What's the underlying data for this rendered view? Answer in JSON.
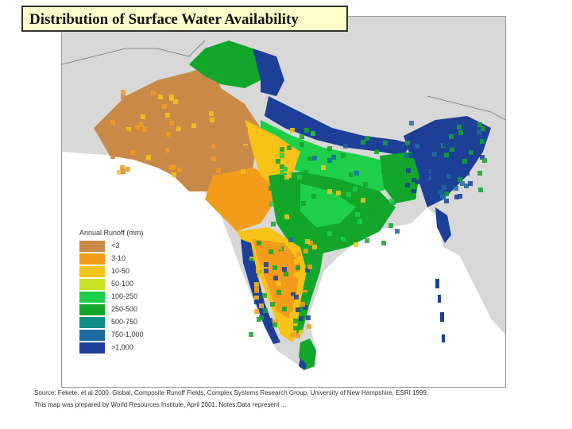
{
  "title": "Distribution of Surface Water Availability",
  "legend": {
    "title": "Annual Runoff (mm)",
    "classes": [
      {
        "label": "<3",
        "color": "#c98a48"
      },
      {
        "label": "3-10",
        "color": "#f39c1c"
      },
      {
        "label": "10-50",
        "color": "#f7c318"
      },
      {
        "label": "50-100",
        "color": "#c6e022"
      },
      {
        "label": "100-250",
        "color": "#1ecf4a"
      },
      {
        "label": "250-500",
        "color": "#12a62a"
      },
      {
        "label": "500-750",
        "color": "#0e8f86"
      },
      {
        "label": "750-1,000",
        "color": "#1d6aa0"
      },
      {
        "label": ">1,000",
        "color": "#1d3f98"
      }
    ]
  },
  "colors": {
    "background_land": "#d8d8d8",
    "ocean": "#ffffff",
    "title_bg": "#ffffcc"
  },
  "source": "Source: Fekete, et al 2000. Global, Composite Runoff Fields, Complex Systems Research Group, University of New Hampshire, ESRI 1999.",
  "prepared": "This map was prepared by World Resources Institute, April 2001. Notes:Data represent ..."
}
